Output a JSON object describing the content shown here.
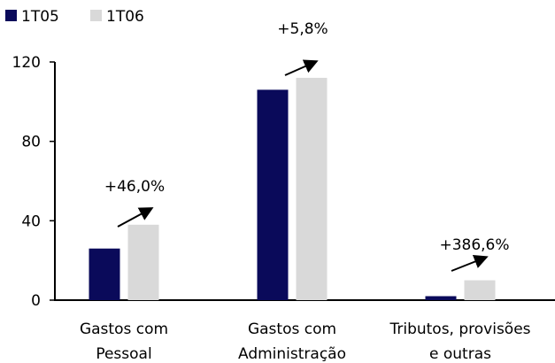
{
  "chart_data": {
    "type": "bar",
    "categories": [
      [
        "Gastos com",
        "Pessoal"
      ],
      [
        "Gastos com",
        "Administração"
      ],
      [
        "Tributos, provisões",
        "e outras"
      ]
    ],
    "series": [
      {
        "name": "1T05",
        "color": "#0a0a5a",
        "values": [
          26,
          106,
          2
        ]
      },
      {
        "name": "1T06",
        "color": "#d9d9d9",
        "values": [
          38,
          112,
          10
        ]
      }
    ],
    "annotations": [
      "+46,0%",
      "+5,8%",
      "+386,6%"
    ],
    "ylim": [
      0,
      120
    ],
    "yticks": [
      0,
      40,
      80,
      120
    ],
    "ytick_labels": [
      "0",
      "40",
      "80",
      "120"
    ],
    "title": "",
    "xlabel": "",
    "ylabel": "",
    "grid": false,
    "legend": "top-left"
  }
}
